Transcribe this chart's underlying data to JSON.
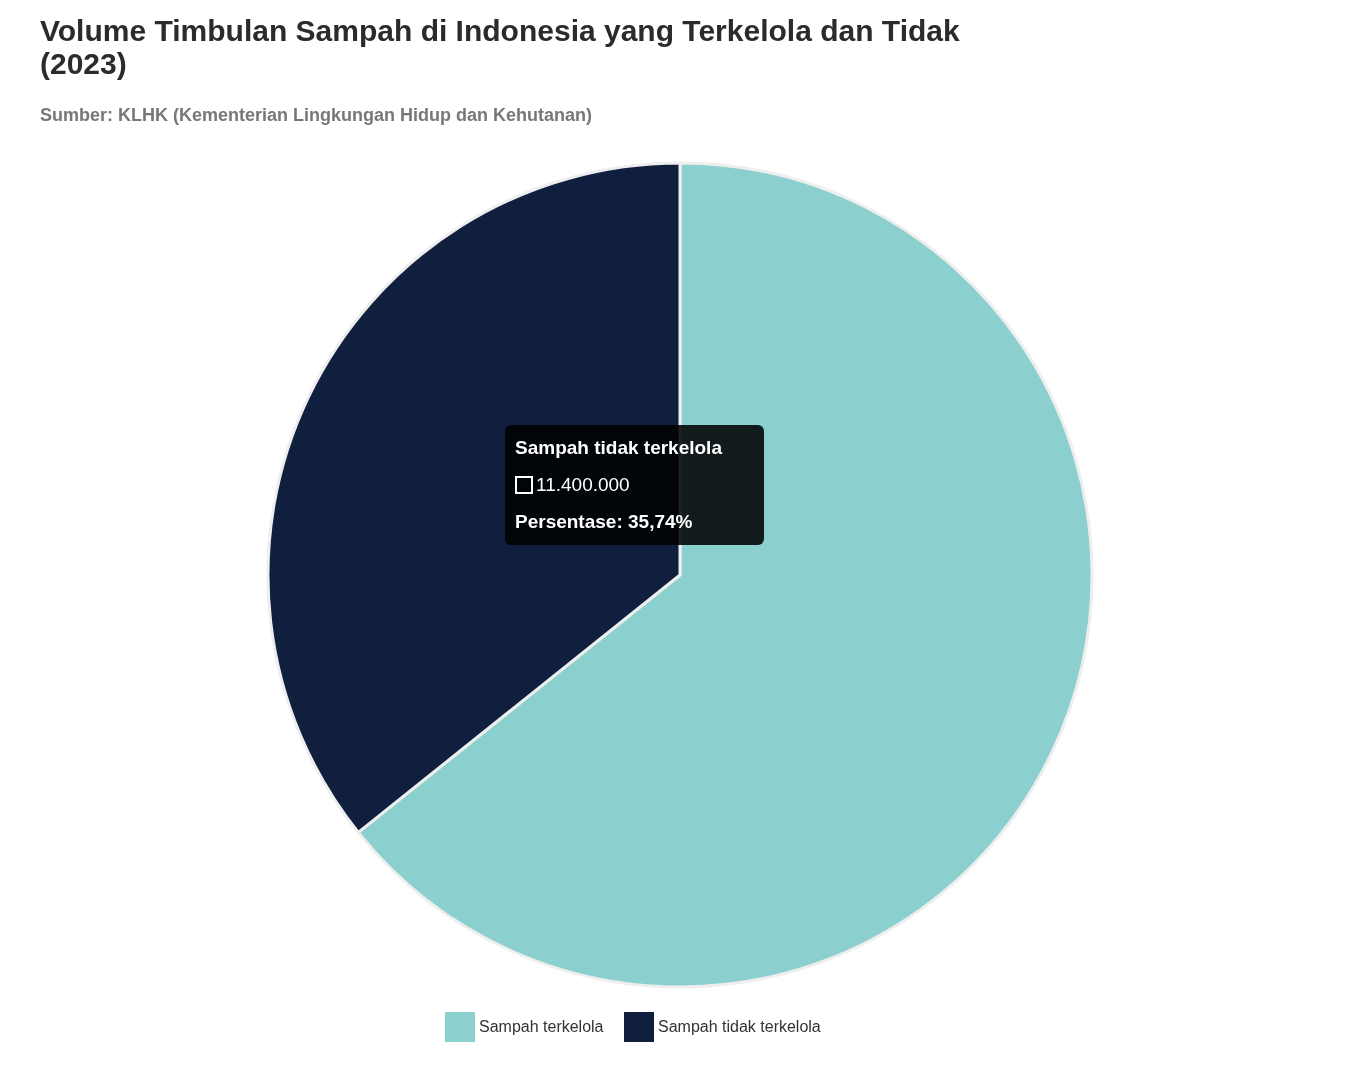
{
  "chart_data": {
    "type": "pie",
    "title": "Volume Timbulan Sampah di Indonesia yang Terkelola dan Tidak (2023)",
    "subtitle": "Sumber: KLHK (Kementerian Lingkungan Hidup dan Kehutanan)",
    "categories": [
      "Sampah terkelola",
      "Sampah tidak terkelola"
    ],
    "values": [
      64.26,
      35.74
    ],
    "colors": [
      "#8ccfcf",
      "#0f1f3d"
    ],
    "legend": "bottom",
    "annotations": [
      "Sampah tidak terkelola",
      "11.400.000",
      "Persentase: 35,74%"
    ]
  }
}
